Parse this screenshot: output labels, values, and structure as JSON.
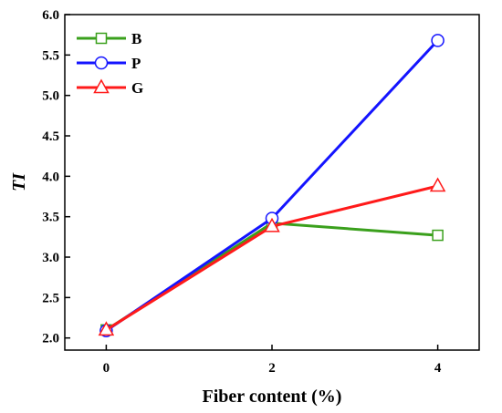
{
  "chart_data": {
    "type": "line",
    "title": "",
    "xlabel": "Fiber content (%)",
    "ylabel": "TI",
    "x": [
      0,
      2,
      4
    ],
    "x_ticks": [
      "0",
      "2",
      "4"
    ],
    "xlim": [
      -0.5,
      4.5
    ],
    "ylim": [
      1.85,
      6.0
    ],
    "y_ticks": [
      "2.0",
      "2.5",
      "3.0",
      "3.5",
      "4.0",
      "4.5",
      "5.0",
      "5.5",
      "6.0"
    ],
    "grid": false,
    "legend_position": "top-left",
    "series": [
      {
        "name": "B",
        "values": [
          2.1,
          3.42,
          3.27
        ],
        "color": "#3aa01c",
        "marker": "square"
      },
      {
        "name": "P",
        "values": [
          2.09,
          3.48,
          5.68
        ],
        "color": "#1414ff",
        "marker": "circle"
      },
      {
        "name": "G",
        "values": [
          2.1,
          3.38,
          3.88
        ],
        "color": "#ff1a1a",
        "marker": "triangle"
      }
    ]
  }
}
